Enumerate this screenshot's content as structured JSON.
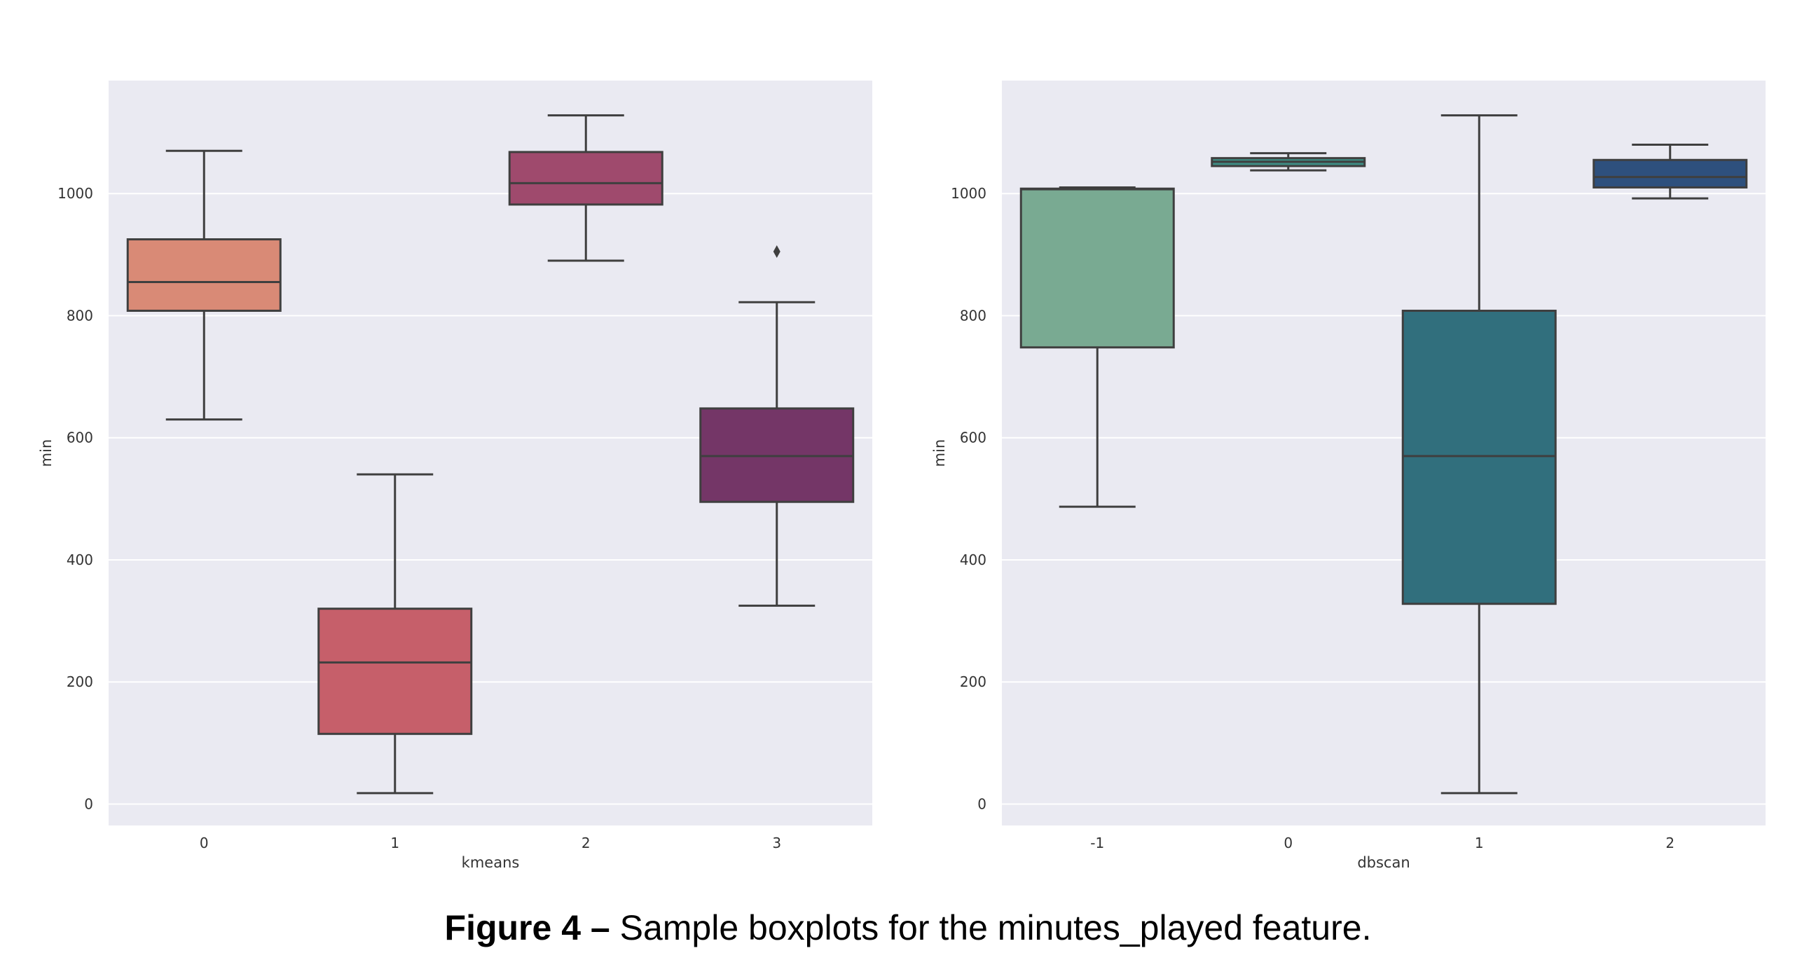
{
  "chart_data": [
    {
      "type": "boxplot",
      "xlabel": "kmeans",
      "ylabel": "min",
      "ylim": [
        -35,
        1185
      ],
      "yticks": [
        0,
        200,
        400,
        600,
        800,
        1000
      ],
      "grid": true,
      "background": "#EAEAF2",
      "categories": [
        "0",
        "1",
        "2",
        "3"
      ],
      "boxes": [
        {
          "category": "0",
          "whislo": 630,
          "q1": 808,
          "med": 855,
          "q3": 925,
          "whishi": 1070,
          "fliers": [],
          "color": "#D98A76"
        },
        {
          "category": "1",
          "whislo": 18,
          "q1": 115,
          "med": 232,
          "q3": 320,
          "whishi": 540,
          "fliers": [],
          "color": "#C65F6A"
        },
        {
          "category": "2",
          "whislo": 890,
          "q1": 982,
          "med": 1017,
          "q3": 1068,
          "whishi": 1128,
          "fliers": [],
          "color": "#9F4A6D"
        },
        {
          "category": "3",
          "whislo": 325,
          "q1": 495,
          "med": 570,
          "q3": 648,
          "whishi": 822,
          "fliers": [
            905
          ],
          "color": "#743667"
        }
      ]
    },
    {
      "type": "boxplot",
      "xlabel": "dbscan",
      "ylabel": "min",
      "ylim": [
        -35,
        1185
      ],
      "yticks": [
        0,
        200,
        400,
        600,
        800,
        1000
      ],
      "grid": true,
      "background": "#EAEAF2",
      "categories": [
        "-1",
        "0",
        "1",
        "2"
      ],
      "boxes": [
        {
          "category": "-1",
          "whislo": 487,
          "q1": 748,
          "med": 1007,
          "q3": 1008,
          "whishi": 1010,
          "fliers": [],
          "color": "#79AA92"
        },
        {
          "category": "0",
          "whislo": 1038,
          "q1": 1045,
          "med": 1052,
          "q3": 1058,
          "whishi": 1066,
          "fliers": [],
          "color": "#3E8C83"
        },
        {
          "category": "1",
          "whislo": 18,
          "q1": 328,
          "med": 570,
          "q3": 808,
          "whishi": 1128,
          "fliers": [],
          "color": "#316F7D"
        },
        {
          "category": "2",
          "whislo": 992,
          "q1": 1010,
          "med": 1027,
          "q3": 1055,
          "whishi": 1080,
          "fliers": [],
          "color": "#2E507D"
        }
      ]
    }
  ],
  "caption": {
    "label": "Figure 4 –",
    "text": " Sample boxplots for the minutes_played feature."
  }
}
